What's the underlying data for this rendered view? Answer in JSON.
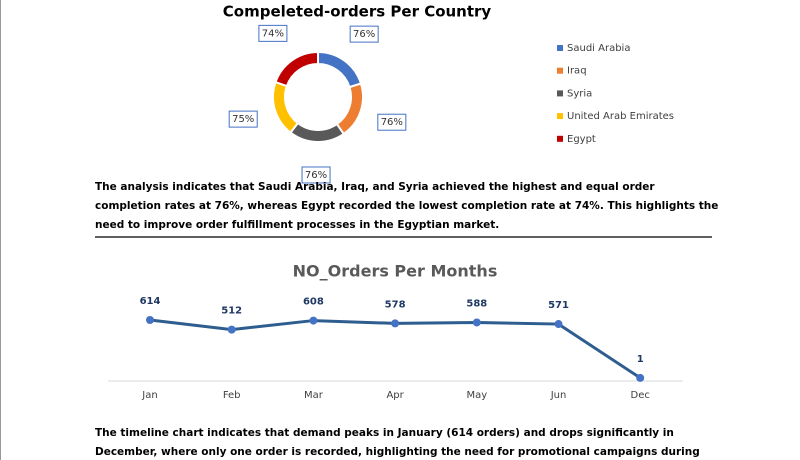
{
  "chart_data": [
    {
      "type": "donut",
      "title": "Compeleted-orders Per Country",
      "categories": [
        "Saudi Arabia",
        "Iraq",
        "Syria",
        "United Arab Emirates",
        "Egypt"
      ],
      "values": [
        76,
        76,
        76,
        75,
        74
      ],
      "value_labels": [
        "76%",
        "76%",
        "76%",
        "75%",
        "74%"
      ],
      "colors": [
        "#4472c4",
        "#ed7d31",
        "#595959",
        "#ffc000",
        "#c00000"
      ]
    },
    {
      "type": "line",
      "title": "NO_Orders Per Months",
      "categories": [
        "Jan",
        "Feb",
        "Mar",
        "Apr",
        "May",
        "Jun",
        "Dec"
      ],
      "values": [
        614,
        512,
        608,
        578,
        588,
        571,
        1
      ],
      "color": "#2e5d8f"
    }
  ],
  "paragraphs": [
    "The analysis indicates that Saudi Arabia, Iraq, and Syria achieved the highest and equal order completion rates at 76%, whereas Egypt recorded the lowest completion rate at 74%. This highlights the need to improve order fulfillment processes in the Egyptian market.",
    "The timeline chart indicates that demand peaks in January (614 orders) and drops significantly in December, where only one order is recorded, highlighting the need for promotional campaigns during December."
  ]
}
